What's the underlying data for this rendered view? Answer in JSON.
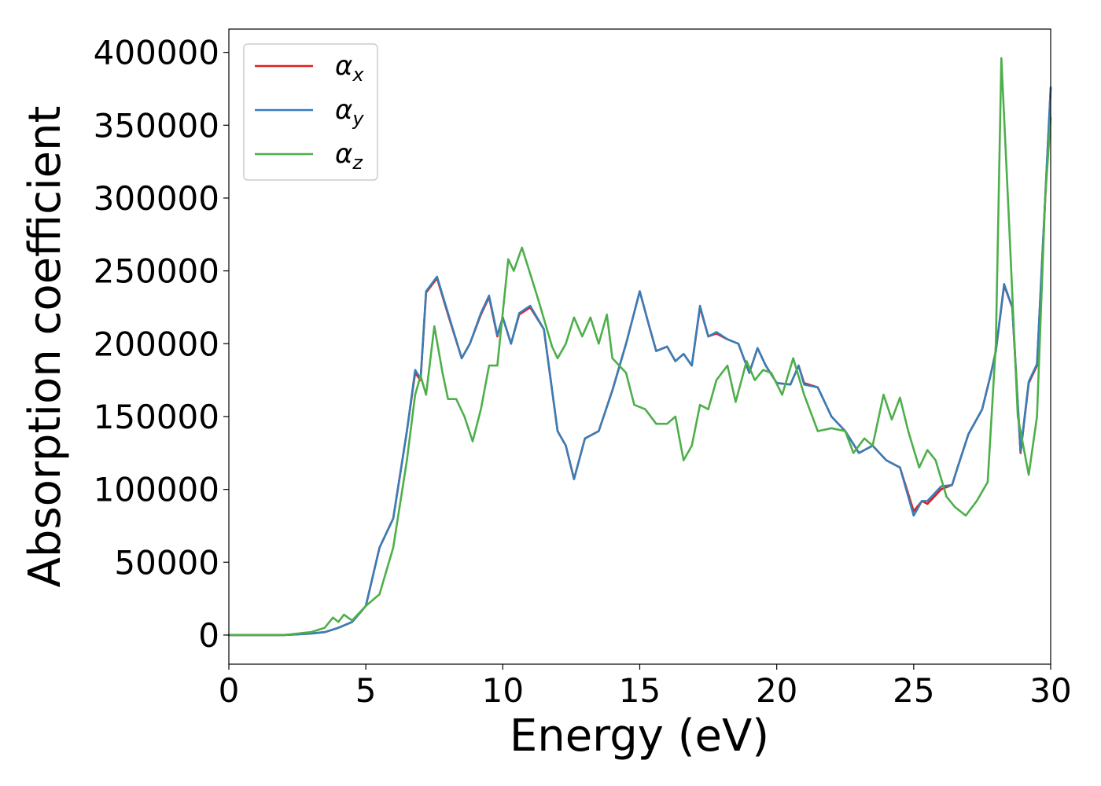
{
  "chart_data": {
    "type": "line",
    "title": "",
    "xlabel": "Energy (eV)",
    "ylabel": "Absorption coefficient",
    "xlim": [
      0,
      30
    ],
    "ylim": [
      -20000,
      416000
    ],
    "xticks": [
      0,
      5,
      10,
      15,
      20,
      25,
      30
    ],
    "yticks": [
      0,
      50000,
      100000,
      150000,
      200000,
      250000,
      300000,
      350000,
      400000
    ],
    "grid": false,
    "legend": "top-left",
    "series": [
      {
        "name": "α",
        "subscript": "x",
        "color": "#e41a1c",
        "points": [
          [
            0,
            0
          ],
          [
            2,
            0
          ],
          [
            3,
            1000
          ],
          [
            3.5,
            2000
          ],
          [
            4,
            5000
          ],
          [
            4.5,
            9000
          ],
          [
            5,
            20000
          ],
          [
            5.5,
            60000
          ],
          [
            6,
            80000
          ],
          [
            6.5,
            140000
          ],
          [
            6.8,
            180000
          ],
          [
            7,
            175000
          ],
          [
            7.2,
            235000
          ],
          [
            7.6,
            245000
          ],
          [
            8,
            220000
          ],
          [
            8.5,
            190000
          ],
          [
            8.8,
            200000
          ],
          [
            9.2,
            220000
          ],
          [
            9.5,
            232000
          ],
          [
            9.8,
            205000
          ],
          [
            10,
            218000
          ],
          [
            10.3,
            200000
          ],
          [
            10.6,
            220000
          ],
          [
            11,
            225000
          ],
          [
            11.5,
            210000
          ],
          [
            12,
            140000
          ],
          [
            12.3,
            130000
          ],
          [
            12.6,
            107000
          ],
          [
            13,
            135000
          ],
          [
            13.5,
            140000
          ],
          [
            14,
            168000
          ],
          [
            14.5,
            200000
          ],
          [
            15,
            236000
          ],
          [
            15.3,
            215000
          ],
          [
            15.6,
            195000
          ],
          [
            16,
            198000
          ],
          [
            16.3,
            188000
          ],
          [
            16.6,
            193000
          ],
          [
            16.9,
            185000
          ],
          [
            17.2,
            225000
          ],
          [
            17.5,
            205000
          ],
          [
            17.8,
            207000
          ],
          [
            18.2,
            203000
          ],
          [
            18.6,
            200000
          ],
          [
            19,
            180000
          ],
          [
            19.3,
            197000
          ],
          [
            19.6,
            185000
          ],
          [
            20,
            173000
          ],
          [
            20.5,
            172000
          ],
          [
            20.8,
            185000
          ],
          [
            21,
            173000
          ],
          [
            21.5,
            170000
          ],
          [
            22,
            150000
          ],
          [
            22.5,
            140000
          ],
          [
            23,
            125000
          ],
          [
            23.5,
            130000
          ],
          [
            24,
            120000
          ],
          [
            24.5,
            115000
          ],
          [
            25,
            85000
          ],
          [
            25.3,
            92000
          ],
          [
            25.5,
            90000
          ],
          [
            26,
            100000
          ],
          [
            26.4,
            103000
          ],
          [
            26.6,
            115000
          ],
          [
            27,
            138000
          ],
          [
            27.5,
            155000
          ],
          [
            27.8,
            178000
          ],
          [
            28,
            195000
          ],
          [
            28.3,
            240000
          ],
          [
            28.6,
            225000
          ],
          [
            28.9,
            125000
          ],
          [
            29.2,
            173000
          ],
          [
            29.5,
            185000
          ],
          [
            30,
            375000
          ]
        ]
      },
      {
        "name": "α",
        "subscript": "y",
        "color": "#377eb8",
        "points": [
          [
            0,
            0
          ],
          [
            2,
            0
          ],
          [
            3,
            1000
          ],
          [
            3.5,
            2000
          ],
          [
            4,
            5000
          ],
          [
            4.5,
            9000
          ],
          [
            5,
            20000
          ],
          [
            5.5,
            60000
          ],
          [
            6,
            80000
          ],
          [
            6.5,
            140000
          ],
          [
            6.8,
            182000
          ],
          [
            7,
            176000
          ],
          [
            7.2,
            236000
          ],
          [
            7.6,
            246000
          ],
          [
            8,
            221000
          ],
          [
            8.5,
            190000
          ],
          [
            8.8,
            200000
          ],
          [
            9.2,
            221000
          ],
          [
            9.5,
            233000
          ],
          [
            9.8,
            206000
          ],
          [
            10,
            218000
          ],
          [
            10.3,
            200000
          ],
          [
            10.6,
            221000
          ],
          [
            11,
            226000
          ],
          [
            11.5,
            210000
          ],
          [
            12,
            140000
          ],
          [
            12.3,
            130000
          ],
          [
            12.6,
            107000
          ],
          [
            13,
            135000
          ],
          [
            13.5,
            140000
          ],
          [
            14,
            168000
          ],
          [
            14.5,
            200000
          ],
          [
            15,
            236000
          ],
          [
            15.3,
            215000
          ],
          [
            15.6,
            195000
          ],
          [
            16,
            198000
          ],
          [
            16.3,
            188000
          ],
          [
            16.6,
            193000
          ],
          [
            16.9,
            185000
          ],
          [
            17.2,
            226000
          ],
          [
            17.5,
            205000
          ],
          [
            17.8,
            208000
          ],
          [
            18.2,
            203000
          ],
          [
            18.6,
            200000
          ],
          [
            19,
            180000
          ],
          [
            19.3,
            197000
          ],
          [
            19.6,
            185000
          ],
          [
            20,
            173000
          ],
          [
            20.5,
            172000
          ],
          [
            20.8,
            185000
          ],
          [
            21,
            172000
          ],
          [
            21.5,
            170000
          ],
          [
            22,
            150000
          ],
          [
            22.5,
            140000
          ],
          [
            23,
            125000
          ],
          [
            23.5,
            130000
          ],
          [
            24,
            120000
          ],
          [
            24.5,
            115000
          ],
          [
            25,
            82000
          ],
          [
            25.3,
            92000
          ],
          [
            25.5,
            92000
          ],
          [
            26,
            102000
          ],
          [
            26.4,
            103000
          ],
          [
            26.6,
            115000
          ],
          [
            27,
            138000
          ],
          [
            27.5,
            155000
          ],
          [
            27.8,
            178000
          ],
          [
            28,
            195000
          ],
          [
            28.3,
            241000
          ],
          [
            28.6,
            225000
          ],
          [
            28.9,
            126000
          ],
          [
            29.2,
            174000
          ],
          [
            29.5,
            186000
          ],
          [
            30,
            376000
          ]
        ]
      },
      {
        "name": "α",
        "subscript": "z",
        "color": "#4daf4a",
        "points": [
          [
            0,
            0
          ],
          [
            2,
            0
          ],
          [
            3,
            2000
          ],
          [
            3.5,
            5000
          ],
          [
            3.8,
            12000
          ],
          [
            4,
            9000
          ],
          [
            4.2,
            14000
          ],
          [
            4.5,
            10000
          ],
          [
            5,
            20000
          ],
          [
            5.5,
            28000
          ],
          [
            6,
            60000
          ],
          [
            6.5,
            120000
          ],
          [
            6.8,
            165000
          ],
          [
            7,
            178000
          ],
          [
            7.2,
            165000
          ],
          [
            7.5,
            212000
          ],
          [
            7.8,
            180000
          ],
          [
            8,
            162000
          ],
          [
            8.3,
            162000
          ],
          [
            8.6,
            150000
          ],
          [
            8.9,
            133000
          ],
          [
            9.2,
            155000
          ],
          [
            9.5,
            185000
          ],
          [
            9.8,
            185000
          ],
          [
            10.2,
            258000
          ],
          [
            10.4,
            250000
          ],
          [
            10.7,
            266000
          ],
          [
            11,
            248000
          ],
          [
            11.3,
            230000
          ],
          [
            11.8,
            198000
          ],
          [
            12,
            190000
          ],
          [
            12.3,
            200000
          ],
          [
            12.6,
            218000
          ],
          [
            12.9,
            205000
          ],
          [
            13.2,
            218000
          ],
          [
            13.5,
            200000
          ],
          [
            13.8,
            220000
          ],
          [
            14,
            190000
          ],
          [
            14.5,
            180000
          ],
          [
            14.8,
            158000
          ],
          [
            15.2,
            155000
          ],
          [
            15.6,
            145000
          ],
          [
            16,
            145000
          ],
          [
            16.3,
            150000
          ],
          [
            16.6,
            120000
          ],
          [
            16.9,
            130000
          ],
          [
            17.2,
            158000
          ],
          [
            17.5,
            155000
          ],
          [
            17.8,
            175000
          ],
          [
            18.2,
            185000
          ],
          [
            18.5,
            160000
          ],
          [
            18.9,
            188000
          ],
          [
            19.2,
            175000
          ],
          [
            19.5,
            182000
          ],
          [
            19.8,
            180000
          ],
          [
            20.2,
            165000
          ],
          [
            20.6,
            190000
          ],
          [
            21,
            165000
          ],
          [
            21.5,
            140000
          ],
          [
            22,
            142000
          ],
          [
            22.5,
            140000
          ],
          [
            22.8,
            125000
          ],
          [
            23.2,
            135000
          ],
          [
            23.5,
            130000
          ],
          [
            23.9,
            165000
          ],
          [
            24.2,
            148000
          ],
          [
            24.5,
            163000
          ],
          [
            24.8,
            140000
          ],
          [
            25.2,
            115000
          ],
          [
            25.5,
            127000
          ],
          [
            25.8,
            120000
          ],
          [
            26.2,
            95000
          ],
          [
            26.5,
            88000
          ],
          [
            26.9,
            82000
          ],
          [
            27.3,
            92000
          ],
          [
            27.7,
            105000
          ],
          [
            28,
            200000
          ],
          [
            28.2,
            396000
          ],
          [
            28.5,
            275000
          ],
          [
            28.8,
            150000
          ],
          [
            29.2,
            110000
          ],
          [
            29.5,
            150000
          ],
          [
            29.8,
            300000
          ],
          [
            30,
            355000
          ]
        ]
      }
    ]
  }
}
